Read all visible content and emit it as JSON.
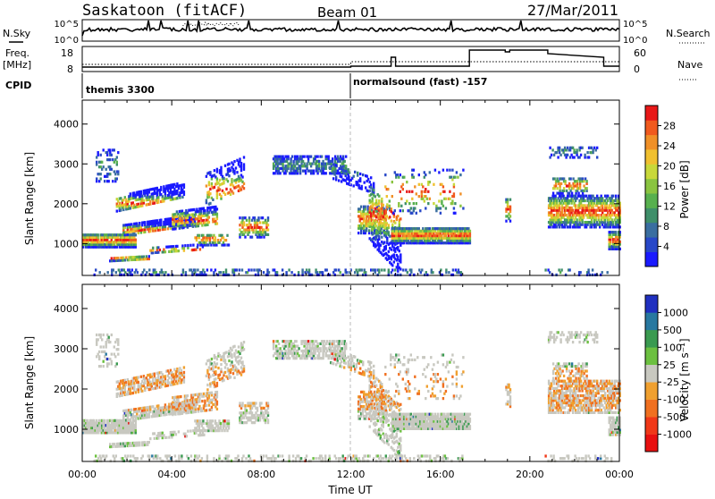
{
  "header": {
    "station": "Saskatoon (fitACF)",
    "beam": "Beam 01",
    "date": "27/Mar/2011"
  },
  "strip_labels": {
    "nsky": "N.Sky",
    "nsearch": "N.Search",
    "freq_line1": "Freq.",
    "freq_line2": "[MHz]",
    "nave": "Nave",
    "cpid": "CPID"
  },
  "strip_ticks": {
    "noise_left": [
      "10^5",
      "10^0"
    ],
    "noise_right": [
      "10^5",
      "10^0"
    ],
    "freq_left": [
      "18",
      "8"
    ],
    "nave_right": [
      "60",
      "0"
    ]
  },
  "cpid_segments": [
    {
      "start_hour": 0,
      "label": "themis 3300"
    },
    {
      "start_hour": 12,
      "label": "normalsound (fast) -157"
    }
  ],
  "chart_data": [
    {
      "type": "heatmap",
      "panel": "power",
      "ylabel": "Slant Range [km]",
      "xlim": [
        0,
        24
      ],
      "ylim": [
        200,
        4600
      ],
      "yticks": [
        "1000",
        "2000",
        "3000",
        "4000"
      ],
      "colorbar": {
        "label": "Power [dB]",
        "ticks": [
          "4",
          "8",
          "12",
          "16",
          "20",
          "24",
          "28"
        ],
        "colors": [
          "#1a1aff",
          "#2848c8",
          "#3a6ea0",
          "#3f8f6a",
          "#57b04e",
          "#8ac440",
          "#c8d83a",
          "#f0c030",
          "#f09028",
          "#f05a1e",
          "#e81818"
        ]
      }
    },
    {
      "type": "heatmap",
      "panel": "velocity",
      "ylabel": "Slant Range [km]",
      "xlabel": "Time UT",
      "xlim": [
        0,
        24
      ],
      "ylim": [
        200,
        4600
      ],
      "yticks": [
        "1000",
        "2000",
        "3000",
        "4000"
      ],
      "xticks": [
        "00:00",
        "04:00",
        "08:00",
        "12:00",
        "16:00",
        "20:00",
        "00:00"
      ],
      "colorbar": {
        "label": "Velocity [m s⁻¹]",
        "ticks": [
          "1000",
          "500",
          "100",
          "25",
          "-25",
          "-100",
          "-500",
          "-1000"
        ],
        "colors": [
          "#2030c0",
          "#2878a0",
          "#3a9a50",
          "#6cc040",
          "#c8c8c0",
          "#f0a030",
          "#f07020",
          "#f03818",
          "#e81010"
        ]
      }
    }
  ]
}
